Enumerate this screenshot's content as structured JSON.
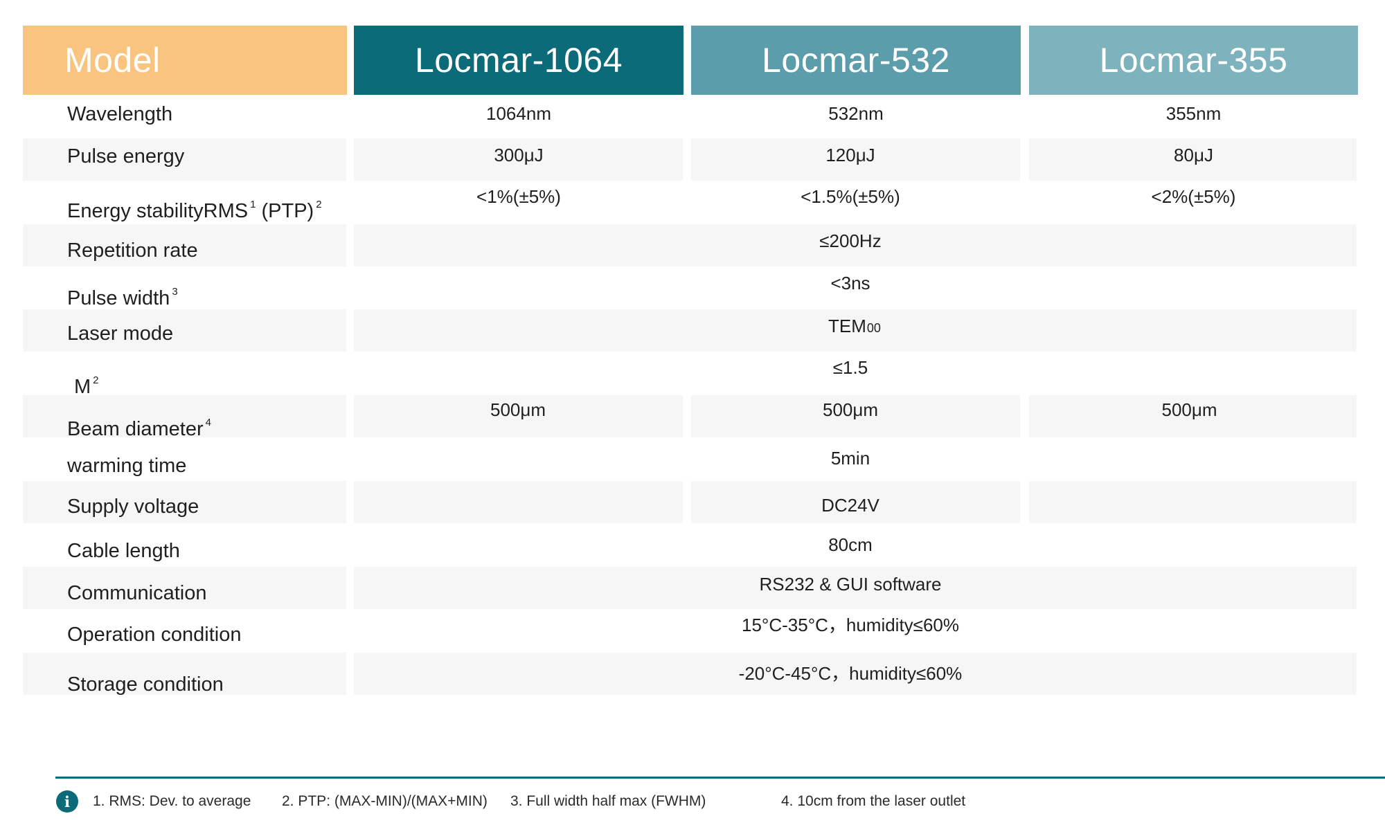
{
  "header": {
    "model_label": "Model",
    "columns": [
      "Locmar-1064",
      "Locmar-532",
      "Locmar-355"
    ]
  },
  "colors": {
    "model_header": "#f8c47f",
    "col1_header": "#0b6b78",
    "col2_header": "#5c9dac",
    "col3_header": "#7eb2bd",
    "band": "#f6f6f6",
    "rule": "#0b6b78"
  },
  "rows": {
    "wavelength": {
      "label": "Wavelength",
      "values": [
        "1064nm",
        "532nm",
        "355nm"
      ]
    },
    "pulse_energy": {
      "label": "Pulse energy",
      "values": [
        "300μJ",
        "120μJ",
        "80μJ"
      ]
    },
    "energy_stability": {
      "label": "Energy stabilityRMS",
      "sup1": "1",
      "label2": "(PTP)",
      "sup2": "2",
      "values": [
        "<1%(±5%)",
        "<1.5%(±5%)",
        "<2%(±5%)"
      ]
    },
    "repetition_rate": {
      "label": "Repetition rate",
      "value": "≤200Hz"
    },
    "pulse_width": {
      "label": "Pulse width",
      "sup": "3",
      "value": "<3ns"
    },
    "laser_mode": {
      "label": "Laser mode",
      "value": "TEM",
      "value_sub": "00"
    },
    "m2": {
      "label": "M",
      "sup": "2",
      "value": "≤1.5"
    },
    "beam_diameter": {
      "label": "Beam diameter",
      "sup": "4",
      "values": [
        "500μm",
        "500μm",
        "500μm"
      ]
    },
    "warming_time": {
      "label": "warming time",
      "value": "5min"
    },
    "supply_voltage": {
      "label": "Supply voltage",
      "value": "DC24V"
    },
    "cable_length": {
      "label": "Cable length",
      "value": "80cm"
    },
    "communication": {
      "label": "Communication",
      "value": "RS232 & GUI software"
    },
    "operation_condition": {
      "label": "Operation condition",
      "value": "15°C-35°C，humidity≤60%"
    },
    "storage_condition": {
      "label": "Storage condition",
      "value": "-20°C-45°C，humidity≤60%"
    }
  },
  "footnotes": {
    "info_icon": "info-icon",
    "note1": "1. RMS:  Dev. to average",
    "note2": "2. PTP: (MAX-MIN)/(MAX+MIN)",
    "note3": "3.  Full width half max (FWHM)",
    "note4": "4. 10cm from the laser outlet"
  }
}
